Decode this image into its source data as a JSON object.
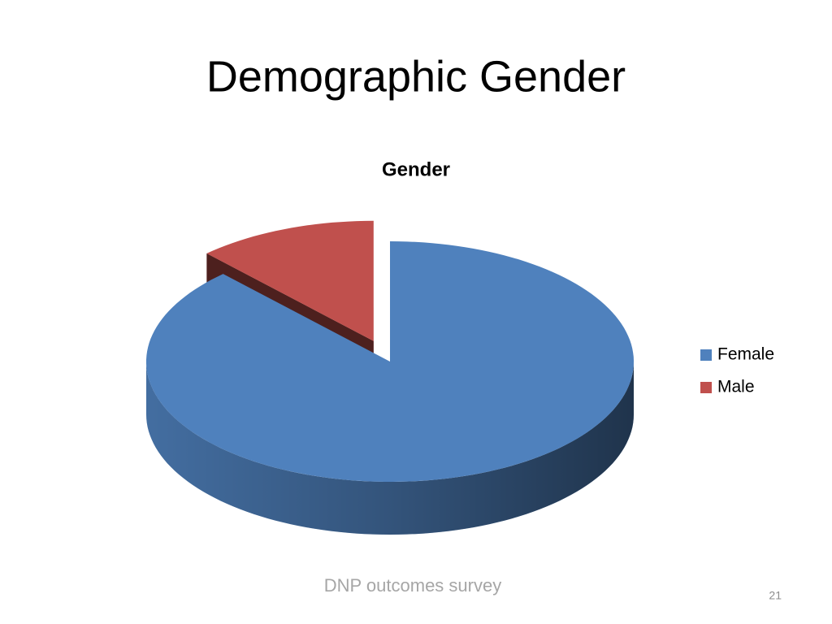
{
  "slide": {
    "title": "Demographic Gender",
    "footer": "DNP outcomes survey",
    "page_number": "21"
  },
  "chart_data": {
    "type": "pie",
    "title": "Gender",
    "categories": [
      "Female",
      "Male"
    ],
    "values": [
      88,
      12
    ],
    "colors": [
      "#4f81bd",
      "#c0504d"
    ],
    "exploded": [
      false,
      true
    ],
    "legend": "right"
  }
}
